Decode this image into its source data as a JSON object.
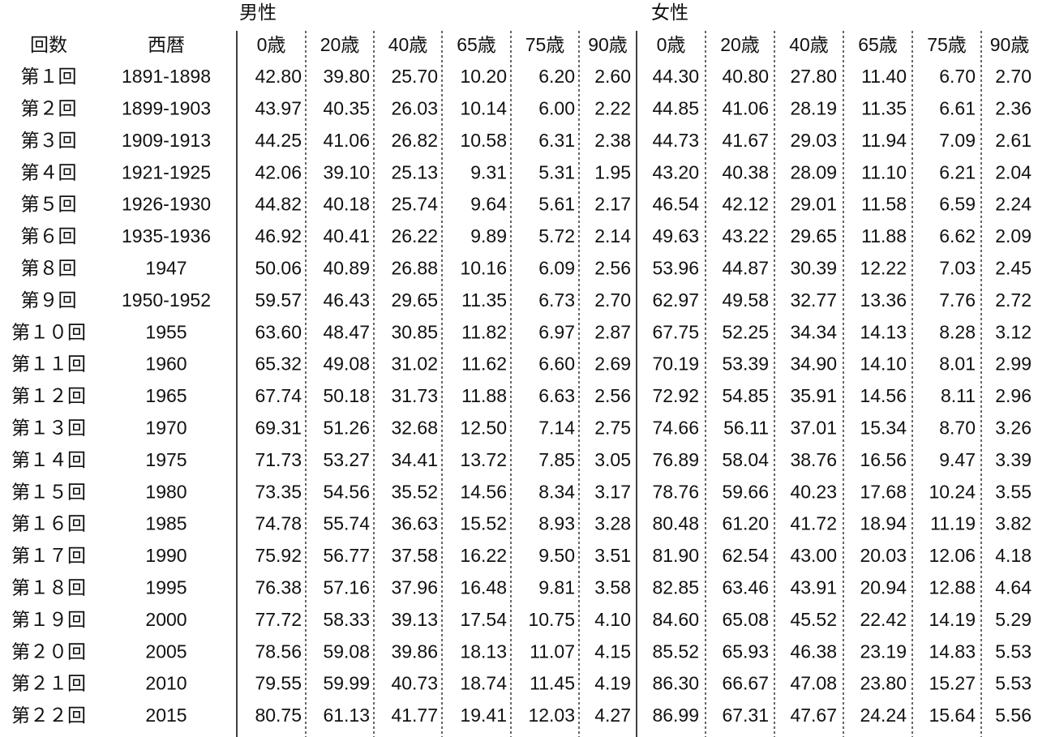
{
  "table": {
    "group_headers": [
      "男性",
      "女性"
    ],
    "columns": [
      "回数",
      "西暦",
      "0歳",
      "20歳",
      "40歳",
      "65歳",
      "75歳",
      "90歳",
      "0歳",
      "20歳",
      "40歳",
      "65歳",
      "75歳",
      "90歳"
    ],
    "rows": [
      [
        "第１回",
        "1891-1898",
        "42.80",
        "39.80",
        "25.70",
        "10.20",
        "6.20",
        "2.60",
        "44.30",
        "40.80",
        "27.80",
        "11.40",
        "6.70",
        "2.70"
      ],
      [
        "第２回",
        "1899-1903",
        "43.97",
        "40.35",
        "26.03",
        "10.14",
        "6.00",
        "2.22",
        "44.85",
        "41.06",
        "28.19",
        "11.35",
        "6.61",
        "2.36"
      ],
      [
        "第３回",
        "1909-1913",
        "44.25",
        "41.06",
        "26.82",
        "10.58",
        "6.31",
        "2.38",
        "44.73",
        "41.67",
        "29.03",
        "11.94",
        "7.09",
        "2.61"
      ],
      [
        "第４回",
        "1921-1925",
        "42.06",
        "39.10",
        "25.13",
        "9.31",
        "5.31",
        "1.95",
        "43.20",
        "40.38",
        "28.09",
        "11.10",
        "6.21",
        "2.04"
      ],
      [
        "第５回",
        "1926-1930",
        "44.82",
        "40.18",
        "25.74",
        "9.64",
        "5.61",
        "2.17",
        "46.54",
        "42.12",
        "29.01",
        "11.58",
        "6.59",
        "2.24"
      ],
      [
        "第６回",
        "1935-1936",
        "46.92",
        "40.41",
        "26.22",
        "9.89",
        "5.72",
        "2.14",
        "49.63",
        "43.22",
        "29.65",
        "11.88",
        "6.62",
        "2.09"
      ],
      [
        "第８回",
        "1947",
        "50.06",
        "40.89",
        "26.88",
        "10.16",
        "6.09",
        "2.56",
        "53.96",
        "44.87",
        "30.39",
        "12.22",
        "7.03",
        "2.45"
      ],
      [
        "第９回",
        "1950-1952",
        "59.57",
        "46.43",
        "29.65",
        "11.35",
        "6.73",
        "2.70",
        "62.97",
        "49.58",
        "32.77",
        "13.36",
        "7.76",
        "2.72"
      ],
      [
        "第１０回",
        "1955",
        "63.60",
        "48.47",
        "30.85",
        "11.82",
        "6.97",
        "2.87",
        "67.75",
        "52.25",
        "34.34",
        "14.13",
        "8.28",
        "3.12"
      ],
      [
        "第１１回",
        "1960",
        "65.32",
        "49.08",
        "31.02",
        "11.62",
        "6.60",
        "2.69",
        "70.19",
        "53.39",
        "34.90",
        "14.10",
        "8.01",
        "2.99"
      ],
      [
        "第１２回",
        "1965",
        "67.74",
        "50.18",
        "31.73",
        "11.88",
        "6.63",
        "2.56",
        "72.92",
        "54.85",
        "35.91",
        "14.56",
        "8.11",
        "2.96"
      ],
      [
        "第１３回",
        "1970",
        "69.31",
        "51.26",
        "32.68",
        "12.50",
        "7.14",
        "2.75",
        "74.66",
        "56.11",
        "37.01",
        "15.34",
        "8.70",
        "3.26"
      ],
      [
        "第１４回",
        "1975",
        "71.73",
        "53.27",
        "34.41",
        "13.72",
        "7.85",
        "3.05",
        "76.89",
        "58.04",
        "38.76",
        "16.56",
        "9.47",
        "3.39"
      ],
      [
        "第１５回",
        "1980",
        "73.35",
        "54.56",
        "35.52",
        "14.56",
        "8.34",
        "3.17",
        "78.76",
        "59.66",
        "40.23",
        "17.68",
        "10.24",
        "3.55"
      ],
      [
        "第１６回",
        "1985",
        "74.78",
        "55.74",
        "36.63",
        "15.52",
        "8.93",
        "3.28",
        "80.48",
        "61.20",
        "41.72",
        "18.94",
        "11.19",
        "3.82"
      ],
      [
        "第１７回",
        "1990",
        "75.92",
        "56.77",
        "37.58",
        "16.22",
        "9.50",
        "3.51",
        "81.90",
        "62.54",
        "43.00",
        "20.03",
        "12.06",
        "4.18"
      ],
      [
        "第１８回",
        "1995",
        "76.38",
        "57.16",
        "37.96",
        "16.48",
        "9.81",
        "3.58",
        "82.85",
        "63.46",
        "43.91",
        "20.94",
        "12.88",
        "4.64"
      ],
      [
        "第１９回",
        "2000",
        "77.72",
        "58.33",
        "39.13",
        "17.54",
        "10.75",
        "4.10",
        "84.60",
        "65.08",
        "45.52",
        "22.42",
        "14.19",
        "5.29"
      ],
      [
        "第２０回",
        "2005",
        "78.56",
        "59.08",
        "39.86",
        "18.13",
        "11.07",
        "4.15",
        "85.52",
        "65.93",
        "46.38",
        "23.19",
        "14.83",
        "5.53"
      ],
      [
        "第２１回",
        "2010",
        "79.55",
        "59.99",
        "40.73",
        "18.74",
        "11.45",
        "4.19",
        "86.30",
        "66.67",
        "47.08",
        "23.80",
        "15.27",
        "5.53"
      ],
      [
        "第２２回",
        "2015",
        "80.75",
        "61.13",
        "41.77",
        "19.41",
        "12.03",
        "4.27",
        "86.99",
        "67.31",
        "47.67",
        "24.24",
        "15.64",
        "5.56"
      ]
    ]
  }
}
